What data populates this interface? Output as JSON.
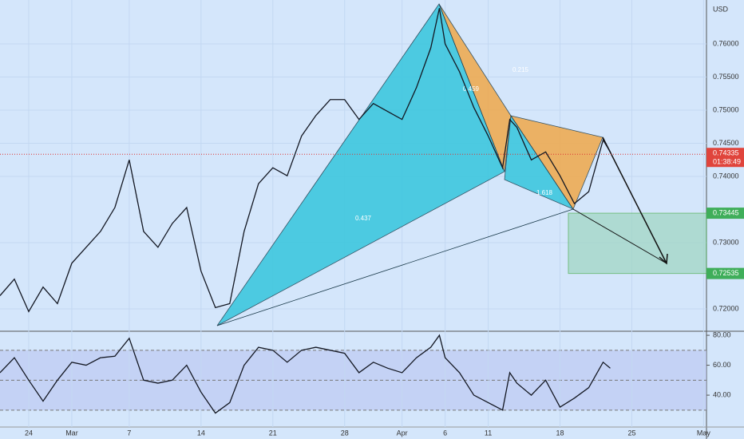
{
  "chart_data": [
    {
      "type": "line",
      "currency": "USD",
      "x": [
        -2,
        -1,
        0,
        1,
        2,
        3,
        4,
        5,
        6,
        7,
        8,
        9,
        10,
        11,
        12,
        13,
        14,
        15,
        16,
        17,
        18,
        19,
        20,
        21,
        22,
        23,
        24,
        25,
        26,
        27,
        28,
        28.6,
        29,
        30,
        31,
        32,
        33,
        33.5,
        34,
        35,
        36,
        37,
        38,
        39,
        40,
        40.5
      ],
      "values": [
        0.722,
        0.7245,
        0.7196,
        0.7233,
        0.7208,
        0.7269,
        0.7293,
        0.7317,
        0.7353,
        0.7425,
        0.7317,
        0.7293,
        0.7329,
        0.7353,
        0.7257,
        0.7202,
        0.7208,
        0.7317,
        0.7389,
        0.7413,
        0.7401,
        0.7461,
        0.7492,
        0.7516,
        0.7516,
        0.7486,
        0.751,
        0.7498,
        0.7486,
        0.7534,
        0.7594,
        0.7654,
        0.76,
        0.7558,
        0.7504,
        0.7461,
        0.7413,
        0.7486,
        0.7474,
        0.7425,
        0.7437,
        0.7401,
        0.7359,
        0.7377,
        0.7455,
        0.7437
      ],
      "color": "#131722",
      "xlim": [
        -2,
        47.2
      ],
      "xticks": [
        {
          "value": 0,
          "label": "24"
        },
        {
          "value": 3,
          "label": "Mar"
        },
        {
          "value": 7,
          "label": "7"
        },
        {
          "value": 12,
          "label": "14"
        },
        {
          "value": 17,
          "label": "21"
        },
        {
          "value": 22,
          "label": "28"
        },
        {
          "value": 26,
          "label": "Apr"
        },
        {
          "value": 29,
          "label": "6"
        },
        {
          "value": 32,
          "label": "11"
        },
        {
          "value": 37,
          "label": "18"
        },
        {
          "value": 42,
          "label": "25"
        },
        {
          "value": 47,
          "label": "May"
        }
      ],
      "ylim": [
        0.71663,
        0.76663
      ],
      "yticks": [
        {
          "value": 0.76,
          "label": "0.76000"
        },
        {
          "value": 0.755,
          "label": "0.75500"
        },
        {
          "value": 0.75,
          "label": "0.75000"
        },
        {
          "value": 0.745,
          "label": "0.74500"
        },
        {
          "value": 0.74,
          "label": "0.74000"
        },
        {
          "value": 0.73,
          "label": "0.73000"
        },
        {
          "value": 0.72,
          "label": "0.72000"
        }
      ],
      "current_price": {
        "value": 0.74335,
        "label": "0.74335"
      },
      "countdown": "01:38:49",
      "target_zone": [
        {
          "value": 0.73445,
          "label": "0.73445"
        },
        {
          "value": 0.72535,
          "label": "0.72535"
        }
      ],
      "pattern_labels": [
        "0.437",
        "0.459",
        "0.215",
        "1.618"
      ]
    },
    {
      "type": "line",
      "x": [
        -2,
        -1,
        0,
        1,
        2,
        3,
        4,
        5,
        6,
        7,
        8,
        9,
        10,
        11,
        12,
        13,
        14,
        15,
        16,
        17,
        18,
        19,
        20,
        21,
        22,
        23,
        24,
        25,
        26,
        27,
        28,
        28.6,
        29,
        30,
        31,
        32,
        33,
        33.5,
        34,
        35,
        36,
        37,
        38,
        39,
        40,
        40.5
      ],
      "values": [
        55,
        65,
        50,
        36,
        50,
        62,
        60,
        65,
        66,
        78,
        50,
        48,
        50,
        60,
        42,
        28,
        35,
        60,
        72,
        70,
        62,
        70,
        72,
        70,
        68,
        55,
        62,
        58,
        55,
        65,
        72,
        80,
        65,
        55,
        40,
        35,
        30,
        55,
        48,
        40,
        50,
        32,
        38,
        45,
        62,
        58
      ],
      "color": "#131722",
      "ylim": [
        18.7,
        82.7
      ],
      "yticks": [
        {
          "value": 80,
          "label": "80.00"
        },
        {
          "value": 60,
          "label": "60.00"
        },
        {
          "value": 40,
          "label": "40.00"
        }
      ],
      "bands": [
        70,
        50,
        30
      ]
    }
  ]
}
